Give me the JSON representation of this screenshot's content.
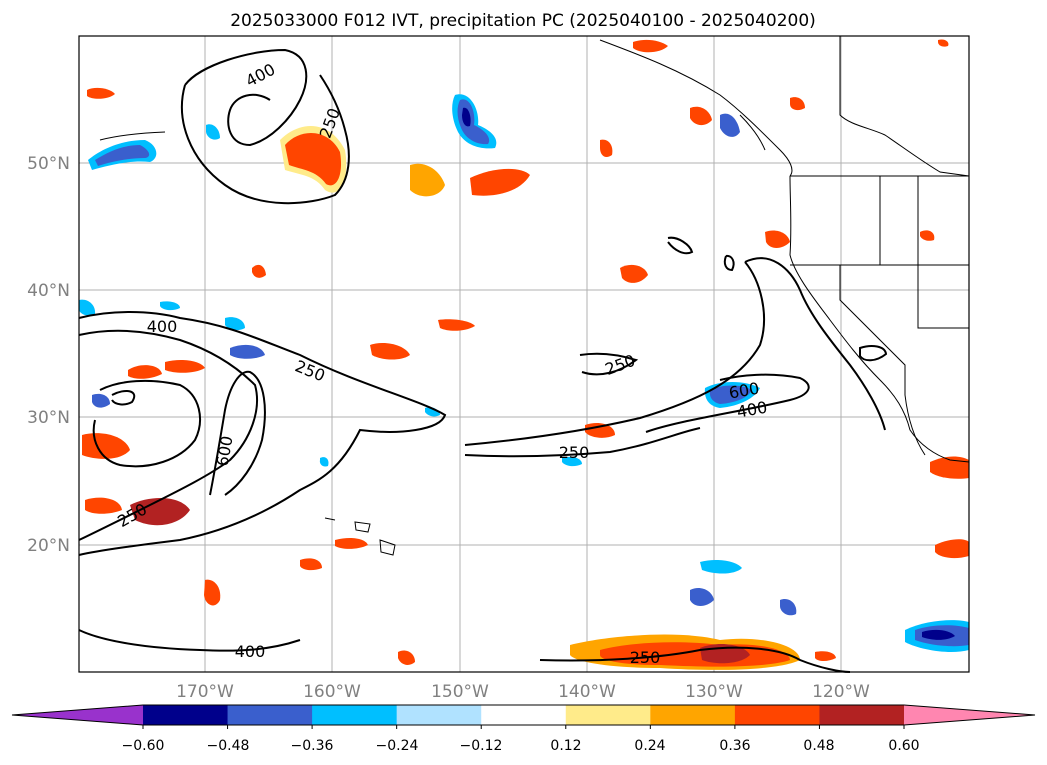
{
  "title": "2025033000 F012 IVT, precipitation PC (2025040100 - 2025040200)",
  "lat_labels": [
    "50°N",
    "40°N",
    "30°N",
    "20°N"
  ],
  "lon_labels": [
    "170°W",
    "160°W",
    "150°W",
    "140°W",
    "130°W",
    "120°W"
  ],
  "colorbar": {
    "ticks": [
      "−0.60",
      "−0.48",
      "−0.36",
      "−0.24",
      "−0.12",
      "0.12",
      "0.24",
      "0.36",
      "0.48",
      "0.60"
    ],
    "colors": [
      "#9932cc",
      "#00008b",
      "#3a5fcd",
      "#00bfff",
      "#b0e2ff",
      "#ffffff",
      "#ffeb8a",
      "#ffa500",
      "#ff4500",
      "#b22222",
      "#ff86b0"
    ]
  },
  "contour_labels": {
    "a": "400",
    "b": "250",
    "c": "400",
    "d": "250",
    "e": "600",
    "f": "250",
    "g": "250",
    "h": "600",
    "i": "400",
    "j": "250",
    "k": "400",
    "l": "250"
  },
  "colors": {
    "contour": "#000000",
    "grid": "#b0b0b0",
    "coast": "#000000"
  }
}
